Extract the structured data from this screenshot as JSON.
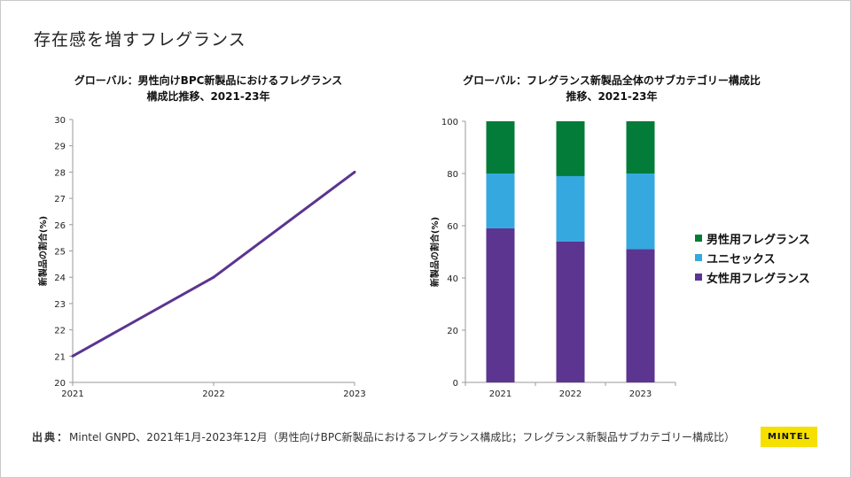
{
  "page": {
    "title": "存在感を増すフレグランス",
    "source_label": "出典：",
    "source_text": "Mintel GNPD、2021年1月-2023年12月（男性向けBPC新製品におけるフレグランス構成比；フレグランス新製品サブカテゴリー構成比）",
    "logo_text": "MINTEL"
  },
  "chart_data": [
    {
      "type": "line",
      "title_lines": [
        "グローバル：男性向けBPC新製品におけるフレグランス",
        "構成比推移、2021-23年"
      ],
      "ylabel": "新製品の割合(%)",
      "xlabel": "",
      "categories": [
        "2021",
        "2022",
        "2023"
      ],
      "series": [
        {
          "values": [
            21,
            24,
            28
          ],
          "color": "#5b3590"
        }
      ],
      "ylim": [
        20,
        30
      ],
      "yticks": [
        "20",
        "21",
        "22",
        "23",
        "24",
        "25",
        "26",
        "27",
        "28",
        "29",
        "30"
      ],
      "grid": false
    },
    {
      "type": "bar",
      "stacked": true,
      "title_lines": [
        "グローバル：フレグランス新製品全体のサブカテゴリー構成比",
        "推移、2021-23年"
      ],
      "ylabel": "新製品の割合(%)",
      "xlabel": "",
      "categories": [
        "2021",
        "2022",
        "2023"
      ],
      "series": [
        {
          "name": "女性用フレグランス",
          "values": [
            59,
            54,
            51
          ],
          "color": "#5b3590"
        },
        {
          "name": "ユニセックス",
          "values": [
            21,
            25,
            29
          ],
          "color": "#35a8e0"
        },
        {
          "name": "男性用フレグランス",
          "values": [
            20,
            21,
            20
          ],
          "color": "#037c3a"
        }
      ],
      "ylim": [
        0,
        100
      ],
      "yticks": [
        "0",
        "20",
        "40",
        "60",
        "80",
        "100"
      ],
      "legend": "right",
      "grid": false
    }
  ]
}
